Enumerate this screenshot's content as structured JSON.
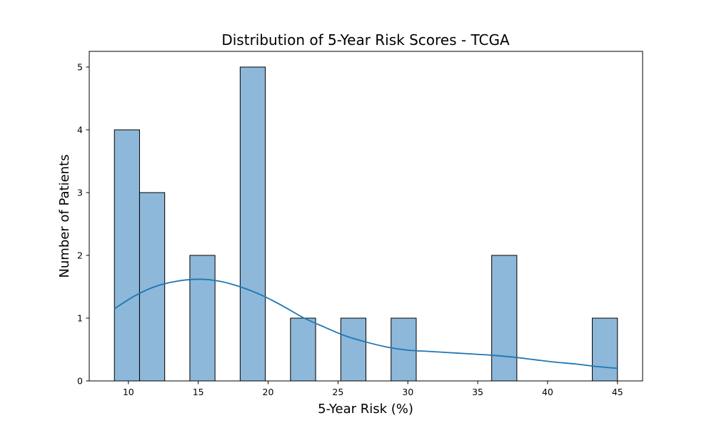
{
  "chart_data": {
    "type": "bar",
    "title": "Distribution of 5-Year Risk Scores - TCGA",
    "xlabel": "5-Year Risk (%)",
    "ylabel": "Number of Patients",
    "xlim": [
      7.2,
      46.8
    ],
    "ylim": [
      0,
      5.25
    ],
    "xticks": [
      10,
      15,
      20,
      25,
      30,
      35,
      40,
      45
    ],
    "yticks": [
      0,
      1,
      2,
      3,
      4,
      5
    ],
    "grid": false,
    "bar_color": "#8db8d9",
    "bar_edge_color": "#000000",
    "kde_color": "#1f77b4",
    "bins": [
      {
        "x0": 9.0,
        "x1": 10.8,
        "count": 4
      },
      {
        "x0": 10.8,
        "x1": 12.6,
        "count": 3
      },
      {
        "x0": 12.6,
        "x1": 14.4,
        "count": 0
      },
      {
        "x0": 14.4,
        "x1": 16.2,
        "count": 2
      },
      {
        "x0": 16.2,
        "x1": 18.0,
        "count": 0
      },
      {
        "x0": 18.0,
        "x1": 19.8,
        "count": 5
      },
      {
        "x0": 19.8,
        "x1": 21.6,
        "count": 0
      },
      {
        "x0": 21.6,
        "x1": 23.4,
        "count": 1
      },
      {
        "x0": 23.4,
        "x1": 25.2,
        "count": 0
      },
      {
        "x0": 25.2,
        "x1": 27.0,
        "count": 1
      },
      {
        "x0": 27.0,
        "x1": 28.8,
        "count": 0
      },
      {
        "x0": 28.8,
        "x1": 30.6,
        "count": 1
      },
      {
        "x0": 30.6,
        "x1": 32.4,
        "count": 0
      },
      {
        "x0": 32.4,
        "x1": 34.2,
        "count": 0
      },
      {
        "x0": 34.2,
        "x1": 36.0,
        "count": 0
      },
      {
        "x0": 36.0,
        "x1": 37.8,
        "count": 2
      },
      {
        "x0": 37.8,
        "x1": 39.6,
        "count": 0
      },
      {
        "x0": 39.6,
        "x1": 41.4,
        "count": 0
      },
      {
        "x0": 41.4,
        "x1": 43.2,
        "count": 0
      },
      {
        "x0": 43.2,
        "x1": 45.0,
        "count": 1
      }
    ],
    "kde": {
      "x": [
        9.0,
        10.5,
        12.0,
        13.5,
        15.0,
        16.5,
        18.0,
        19.5,
        21.0,
        22.5,
        24.0,
        25.5,
        27.0,
        28.5,
        30.0,
        31.5,
        33.0,
        34.5,
        36.0,
        37.5,
        39.0,
        40.5,
        42.0,
        43.5,
        45.0
      ],
      "y": [
        1.15,
        1.36,
        1.51,
        1.59,
        1.62,
        1.59,
        1.5,
        1.37,
        1.2,
        1.01,
        0.86,
        0.72,
        0.62,
        0.54,
        0.49,
        0.47,
        0.45,
        0.43,
        0.41,
        0.38,
        0.34,
        0.3,
        0.27,
        0.23,
        0.2
      ]
    }
  }
}
